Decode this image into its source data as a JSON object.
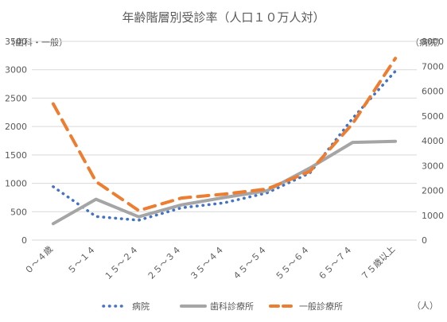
{
  "chart_data": {
    "type": "line",
    "title": "年齢階層別受診率（人口１０万人対）",
    "left_axis_unit": "（歯科・一般）",
    "right_axis_unit": "（病院）",
    "x_unit": "（人）",
    "categories": [
      "０～４歳",
      "５～１４",
      "１５～２４",
      "２５～３４",
      "３５～４４",
      "４５～５４",
      "５５～６４",
      "６５～７４",
      "７５歳以上"
    ],
    "left_axis": {
      "min": 0,
      "max": 3500,
      "step": 500,
      "ticks": [
        "0",
        "500",
        "1000",
        "1500",
        "2000",
        "2500",
        "3000",
        "3500"
      ]
    },
    "right_axis": {
      "min": 0,
      "max": 8000,
      "step": 1000,
      "ticks": [
        "0",
        "1000",
        "2000",
        "3000",
        "4000",
        "5000",
        "6000",
        "7000",
        "8000"
      ]
    },
    "grid": true,
    "legend_position": "bottom",
    "series": [
      {
        "name": "病院",
        "axis": "right",
        "style": "dotted",
        "color": "#4472C4",
        "values": [
          2150,
          950,
          800,
          1300,
          1500,
          1900,
          2700,
          4900,
          6800
        ]
      },
      {
        "name": "歯科診療所",
        "axis": "left",
        "style": "solid",
        "color": "#A5A5A5",
        "values": [
          290,
          720,
          410,
          620,
          750,
          870,
          1270,
          1720,
          1740
        ]
      },
      {
        "name": "一般診療所",
        "axis": "left",
        "style": "dashed",
        "color": "#ED7D31",
        "values": [
          2400,
          1030,
          520,
          740,
          810,
          900,
          1210,
          2050,
          3200
        ]
      }
    ]
  }
}
